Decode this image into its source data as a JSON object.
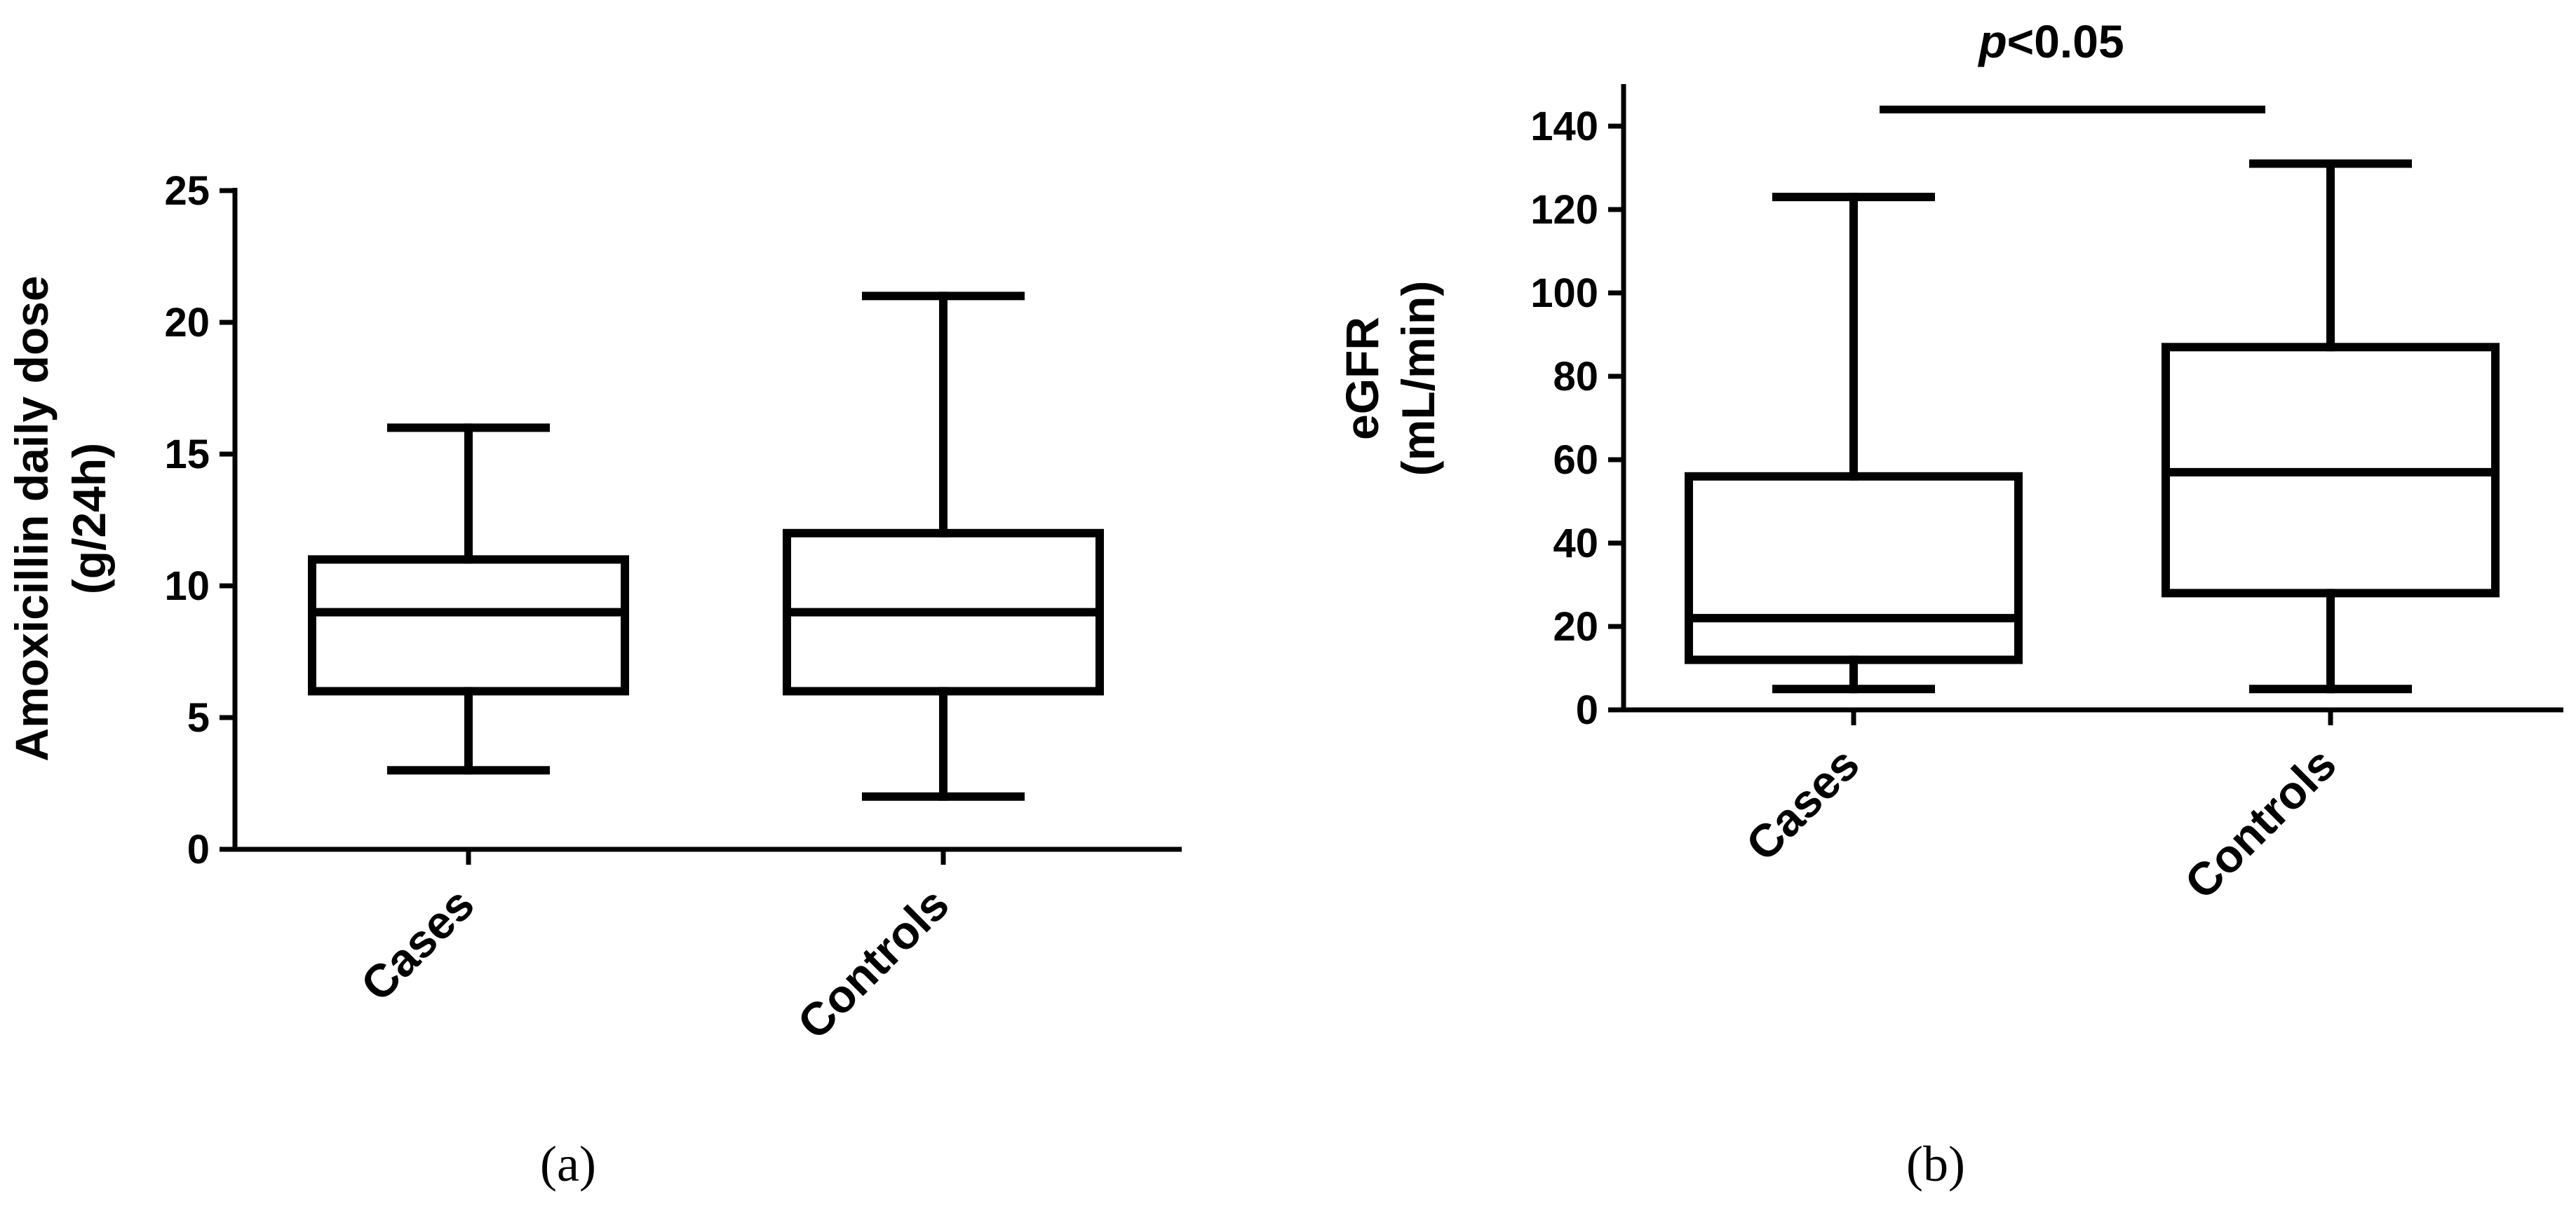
{
  "chart_data": [
    {
      "type": "box",
      "panel_label": "(a)",
      "ylabel": [
        "Amoxicillin daily dose",
        "(g/24h)"
      ],
      "ylim": [
        0,
        25
      ],
      "yticks": [
        0,
        5,
        10,
        15,
        20,
        25
      ],
      "categories": [
        "Cases",
        "Controls"
      ],
      "boxes": [
        {
          "category": "Cases",
          "min": 3,
          "q1": 6,
          "median": 9,
          "q3": 11,
          "max": 16
        },
        {
          "category": "Controls",
          "min": 2,
          "q1": 6,
          "median": 9,
          "q3": 12,
          "max": 21
        }
      ]
    },
    {
      "type": "box",
      "panel_label": "(b)",
      "ylabel": [
        "eGFR",
        "(mL/min)"
      ],
      "ylim": [
        0,
        150
      ],
      "yticks": [
        0,
        20,
        40,
        60,
        80,
        100,
        120,
        140
      ],
      "categories": [
        "Cases",
        "Controls"
      ],
      "boxes": [
        {
          "category": "Cases",
          "min": 5,
          "q1": 12,
          "median": 22,
          "q3": 56,
          "max": 123
        },
        {
          "category": "Controls",
          "min": 5,
          "q1": 28,
          "median": 57,
          "q3": 87,
          "max": 131
        }
      ],
      "significance": {
        "italic": "p",
        "text": "<0.05",
        "y": 144
      }
    }
  ]
}
